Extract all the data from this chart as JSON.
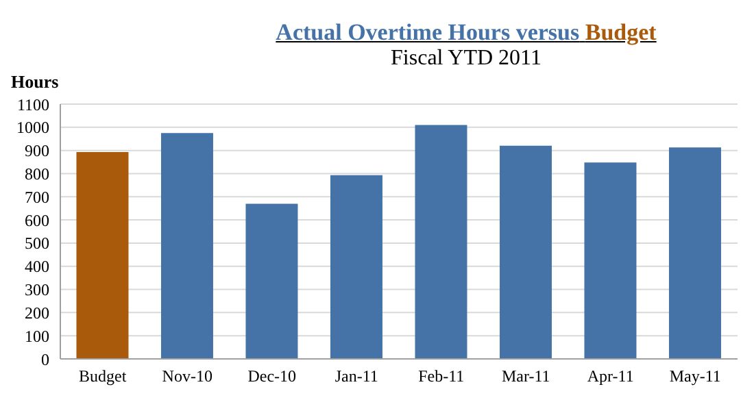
{
  "chart_data": {
    "type": "bar",
    "title": "Actual Overtime Hours versus Budget",
    "subtitle": "Fiscal YTD 2011",
    "ylabel": "Hours",
    "categories": [
      "Budget",
      "Nov-10",
      "Dec-10",
      "Jan-11",
      "Feb-11",
      "Mar-11",
      "Apr-11",
      "May-11"
    ],
    "values": [
      893,
      975,
      670,
      793,
      1010,
      920,
      848,
      913
    ],
    "colors": [
      "#a95a0a",
      "#4572a7",
      "#4572a7",
      "#4572a7",
      "#4572a7",
      "#4572a7",
      "#4572a7",
      "#4572a7"
    ],
    "ylim": [
      0,
      1100
    ],
    "yticks": [
      0,
      100,
      200,
      300,
      400,
      500,
      600,
      700,
      800,
      900,
      1000,
      1100
    ],
    "grid": "y"
  }
}
